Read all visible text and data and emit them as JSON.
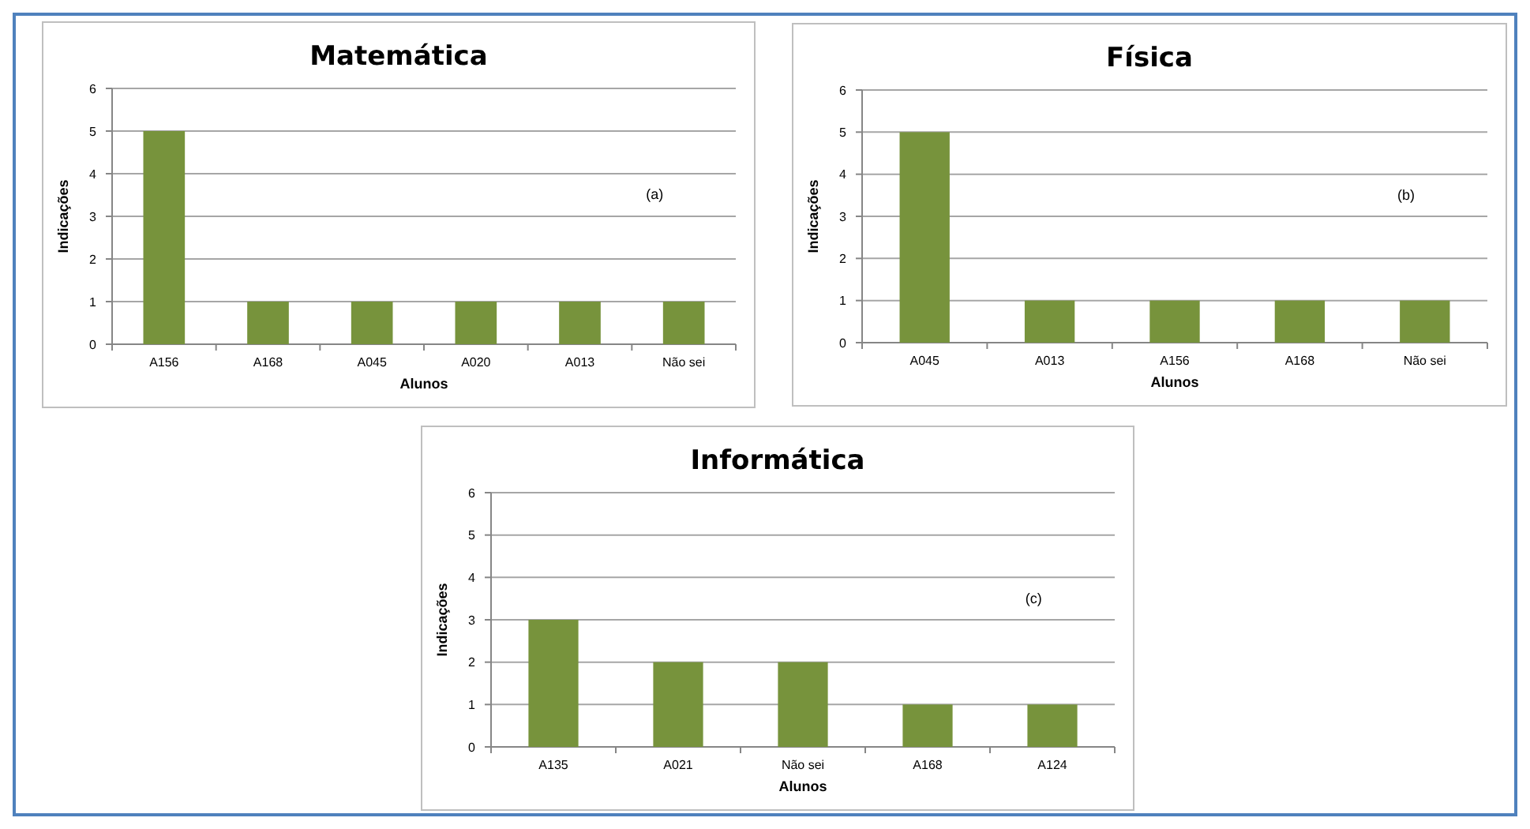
{
  "chart_data": [
    {
      "type": "bar",
      "title": "Matemática",
      "xlabel": "Alunos",
      "ylabel": "Indicações",
      "categories": [
        "A156",
        "A168",
        "A045",
        "A020",
        "A013",
        "Não sei"
      ],
      "values": [
        5,
        1,
        1,
        1,
        1,
        1
      ],
      "color": "#77933c",
      "ylim": [
        0,
        6
      ],
      "yticks": [
        0,
        1,
        2,
        3,
        4,
        5,
        6
      ],
      "grid": "y",
      "annotations": [
        "(a)"
      ]
    },
    {
      "type": "bar",
      "title": "Física",
      "xlabel": "Alunos",
      "ylabel": "Indicações",
      "categories": [
        "A045",
        "A013",
        "A156",
        "A168",
        "Não sei"
      ],
      "values": [
        5,
        1,
        1,
        1,
        1
      ],
      "color": "#77933c",
      "ylim": [
        0,
        6
      ],
      "yticks": [
        0,
        1,
        2,
        3,
        4,
        5,
        6
      ],
      "grid": "y",
      "annotations": [
        "(b)"
      ]
    },
    {
      "type": "bar",
      "title": "Informática",
      "xlabel": "Alunos",
      "ylabel": "Indicações",
      "categories": [
        "A135",
        "A021",
        "Não sei",
        "A168",
        "A124"
      ],
      "values": [
        3,
        2,
        2,
        1,
        1
      ],
      "color": "#77933c",
      "ylim": [
        0,
        6
      ],
      "yticks": [
        0,
        1,
        2,
        3,
        4,
        5,
        6
      ],
      "grid": "y",
      "annotations": [
        "(c)"
      ]
    }
  ]
}
